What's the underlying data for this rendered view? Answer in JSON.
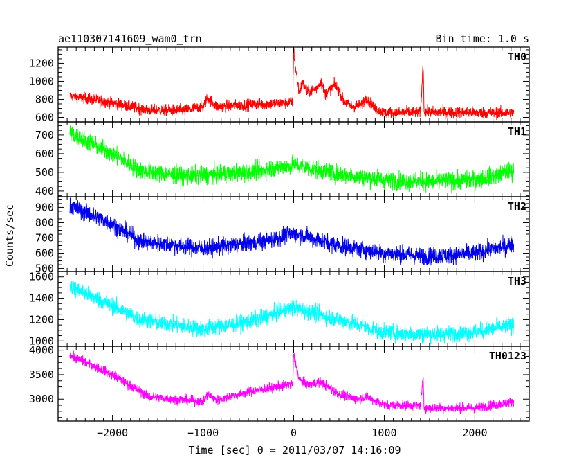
{
  "header": {
    "title": "ae110307141609_wam0_trn",
    "bin_time": "Bin time: 1.0 s"
  },
  "axes": {
    "xlabel": "Time [sec] 0 = 2011/03/07 14:16:09",
    "ylabel": "Counts/sec"
  },
  "chart_data": {
    "type": "line",
    "xlim": [
      -2600,
      2600
    ],
    "x_ticks": [
      -2000,
      -1000,
      0,
      1000,
      2000
    ],
    "x_tick_labels": [
      "−2000",
      "−1000",
      "0",
      "1000",
      "2000"
    ],
    "x_start": -2470,
    "x_end": 2430,
    "xlabel": "Time [sec] 0 = 2011/03/07 14:16:09",
    "ylabel": "Counts/sec",
    "grid": false,
    "panels": [
      {
        "name": "TH0",
        "color": "#ff0000",
        "ylim": [
          550,
          1380
        ],
        "y_ticks": [
          600,
          800,
          1000,
          1200
        ],
        "y_tick_labels": [
          "600",
          "800",
          "1000",
          "1200"
        ],
        "noise": 45,
        "trend": [
          [
            -2470,
            840
          ],
          [
            -2000,
            760
          ],
          [
            -1600,
            680
          ],
          [
            -1200,
            680
          ],
          [
            -1000,
            720
          ],
          [
            -950,
            820
          ],
          [
            -850,
            720
          ],
          [
            -500,
            740
          ],
          [
            -100,
            760
          ],
          [
            -10,
            770
          ],
          [
            0,
            1350
          ],
          [
            20,
            1150
          ],
          [
            60,
            880
          ],
          [
            100,
            980
          ],
          [
            150,
            880
          ],
          [
            250,
            920
          ],
          [
            300,
            1000
          ],
          [
            350,
            860
          ],
          [
            450,
            960
          ],
          [
            500,
            900
          ],
          [
            550,
            780
          ],
          [
            650,
            720
          ],
          [
            750,
            740
          ],
          [
            800,
            820
          ],
          [
            900,
            700
          ],
          [
            1000,
            650
          ],
          [
            1400,
            660
          ],
          [
            1430,
            1200
          ],
          [
            1440,
            660
          ],
          [
            2430,
            650
          ]
        ]
      },
      {
        "name": "TH1",
        "color": "#00ff00",
        "ylim": [
          370,
          770
        ],
        "y_ticks": [
          400,
          500,
          600,
          700
        ],
        "y_tick_labels": [
          "400",
          "500",
          "600",
          "700"
        ],
        "noise": 35,
        "trend": [
          [
            -2470,
            710
          ],
          [
            -2000,
            600
          ],
          [
            -1700,
            510
          ],
          [
            -1200,
            480
          ],
          [
            -500,
            500
          ],
          [
            0,
            540
          ],
          [
            500,
            490
          ],
          [
            1000,
            460
          ],
          [
            1500,
            450
          ],
          [
            2000,
            460
          ],
          [
            2430,
            510
          ]
        ]
      },
      {
        "name": "TH2",
        "color": "#0000ee",
        "ylim": [
          480,
          970
        ],
        "y_ticks": [
          500,
          600,
          700,
          800,
          900
        ],
        "y_tick_labels": [
          "500",
          "600",
          "700",
          "800",
          "900"
        ],
        "noise": 40,
        "trend": [
          [
            -2470,
            910
          ],
          [
            -2000,
            790
          ],
          [
            -1700,
            680
          ],
          [
            -1000,
            630
          ],
          [
            -300,
            680
          ],
          [
            0,
            730
          ],
          [
            500,
            650
          ],
          [
            1000,
            600
          ],
          [
            1500,
            580
          ],
          [
            2000,
            600
          ],
          [
            2430,
            660
          ]
        ]
      },
      {
        "name": "TH3",
        "color": "#00ffff",
        "ylim": [
          950,
          1650
        ],
        "y_ticks": [
          1000,
          1200,
          1400,
          1600
        ],
        "y_tick_labels": [
          "1000",
          "1200",
          "1400",
          "1600"
        ],
        "noise": 55,
        "trend": [
          [
            -2470,
            1510
          ],
          [
            -2000,
            1330
          ],
          [
            -1700,
            1200
          ],
          [
            -1000,
            1110
          ],
          [
            -500,
            1180
          ],
          [
            0,
            1310
          ],
          [
            500,
            1200
          ],
          [
            1000,
            1080
          ],
          [
            1500,
            1060
          ],
          [
            2000,
            1080
          ],
          [
            2430,
            1150
          ]
        ]
      },
      {
        "name": "TH0123",
        "color": "#ff00ff",
        "ylim": [
          2550,
          4080
        ],
        "y_ticks": [
          3000,
          3500,
          4000
        ],
        "y_tick_labels": [
          "3000",
          "3500",
          "4000"
        ],
        "noise": 70,
        "trend": [
          [
            -2470,
            3900
          ],
          [
            -2000,
            3500
          ],
          [
            -1600,
            3050
          ],
          [
            -1000,
            2950
          ],
          [
            -950,
            3100
          ],
          [
            -850,
            2980
          ],
          [
            -500,
            3150
          ],
          [
            -100,
            3280
          ],
          [
            -10,
            3300
          ],
          [
            0,
            3920
          ],
          [
            60,
            3400
          ],
          [
            150,
            3300
          ],
          [
            300,
            3350
          ],
          [
            500,
            3100
          ],
          [
            700,
            3000
          ],
          [
            800,
            3050
          ],
          [
            1000,
            2880
          ],
          [
            1400,
            2870
          ],
          [
            1430,
            3420
          ],
          [
            1440,
            2820
          ],
          [
            2000,
            2820
          ],
          [
            2430,
            2950
          ]
        ]
      }
    ]
  }
}
